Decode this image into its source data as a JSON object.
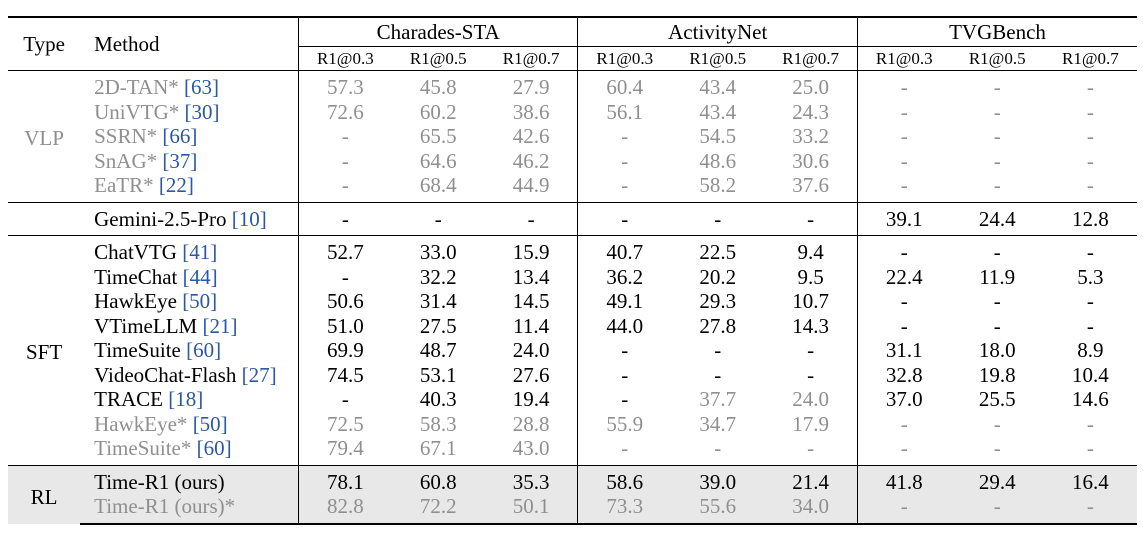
{
  "headers": {
    "type": "Type",
    "method": "Method",
    "groups": [
      "Charades-STA",
      "ActivityNet",
      "TVGBench"
    ],
    "metrics": [
      "R1@0.3",
      "R1@0.5",
      "R1@0.7"
    ]
  },
  "sections": [
    {
      "type": "VLP",
      "rows": [
        {
          "name": "2D-TAN*",
          "cite": "63",
          "style": "gray",
          "values": [
            "57.3",
            "45.8",
            "27.9",
            "60.4",
            "43.4",
            "25.0",
            "-",
            "-",
            "-"
          ]
        },
        {
          "name": "UniVTG*",
          "cite": "30",
          "style": "gray",
          "values": [
            "72.6",
            "60.2",
            "38.6",
            "56.1",
            "43.4",
            "24.3",
            "-",
            "-",
            "-"
          ]
        },
        {
          "name": "SSRN*",
          "cite": "66",
          "style": "gray",
          "values": [
            "-",
            "65.5",
            "42.6",
            "-",
            "54.5",
            "33.2",
            "-",
            "-",
            "-"
          ]
        },
        {
          "name": "SnAG*",
          "cite": "37",
          "style": "gray",
          "values": [
            "-",
            "64.6",
            "46.2",
            "-",
            "48.6",
            "30.6",
            "-",
            "-",
            "-"
          ]
        },
        {
          "name": "EaTR*",
          "cite": "22",
          "style": "gray",
          "values": [
            "-",
            "68.4",
            "44.9",
            "-",
            "58.2",
            "37.6",
            "-",
            "-",
            "-"
          ]
        }
      ]
    },
    {
      "type": "",
      "rows": [
        {
          "name": "Gemini-2.5-Pro",
          "cite": "10",
          "style": "normal",
          "values": [
            "-",
            "-",
            "-",
            "-",
            "-",
            "-",
            "39.1",
            "24.4",
            "12.8"
          ]
        }
      ]
    },
    {
      "type": "SFT",
      "rows": [
        {
          "name": "ChatVTG",
          "cite": "41",
          "style": "normal",
          "values": [
            "52.7",
            "33.0",
            "15.9",
            "40.7",
            "22.5",
            "9.4",
            "-",
            "-",
            "-"
          ]
        },
        {
          "name": "TimeChat",
          "cite": "44",
          "style": "normal",
          "values": [
            "-",
            "32.2",
            "13.4",
            "36.2",
            "20.2",
            "9.5",
            "22.4",
            "11.9",
            "5.3"
          ]
        },
        {
          "name": "HawkEye",
          "cite": "50",
          "style": "normal",
          "values": [
            "50.6",
            "31.4",
            "14.5",
            "49.1",
            "29.3",
            "10.7",
            "-",
            "-",
            "-"
          ]
        },
        {
          "name": "VTimeLLM",
          "cite": "21",
          "style": "normal",
          "values": [
            "51.0",
            "27.5",
            "11.4",
            "44.0",
            "27.8",
            "14.3",
            "-",
            "-",
            "-"
          ]
        },
        {
          "name": "TimeSuite",
          "cite": "60",
          "style": "normal",
          "values": [
            "69.9",
            "48.7",
            "24.0",
            "-",
            "-",
            "-",
            "31.1",
            "18.0",
            "8.9"
          ]
        },
        {
          "name": "VideoChat-Flash",
          "cite": "27",
          "style": "normal",
          "values": [
            "74.5",
            "53.1",
            "27.6",
            "-",
            "-",
            "-",
            "32.8",
            "19.8",
            "10.4"
          ]
        },
        {
          "name": "TRACE",
          "cite": "18",
          "style": "normal",
          "values": [
            "-",
            "40.3",
            "19.4",
            "-",
            "37.7",
            "24.0",
            "37.0",
            "25.5",
            "14.6"
          ],
          "gray_cols": [
            4,
            5
          ]
        },
        {
          "name": "HawkEye*",
          "cite": "50",
          "style": "gray",
          "values": [
            "72.5",
            "58.3",
            "28.8",
            "55.9",
            "34.7",
            "17.9",
            "-",
            "-",
            "-"
          ]
        },
        {
          "name": "TimeSuite*",
          "cite": "60",
          "style": "gray",
          "values": [
            "79.4",
            "67.1",
            "43.0",
            "-",
            "-",
            "-",
            "-",
            "-",
            "-"
          ]
        }
      ]
    },
    {
      "type": "RL",
      "rows": [
        {
          "name": "Time-R1 (ours)",
          "cite": "",
          "style": "bold",
          "values": [
            "78.1",
            "60.8",
            "35.3",
            "58.6",
            "39.0",
            "21.4",
            "41.8",
            "29.4",
            "16.4"
          ]
        },
        {
          "name": "Time-R1 (ours)*",
          "cite": "",
          "style": "gray",
          "values": [
            "82.8",
            "72.2",
            "50.1",
            "73.3",
            "55.6",
            "34.0",
            "-",
            "-",
            "-"
          ]
        }
      ]
    }
  ]
}
